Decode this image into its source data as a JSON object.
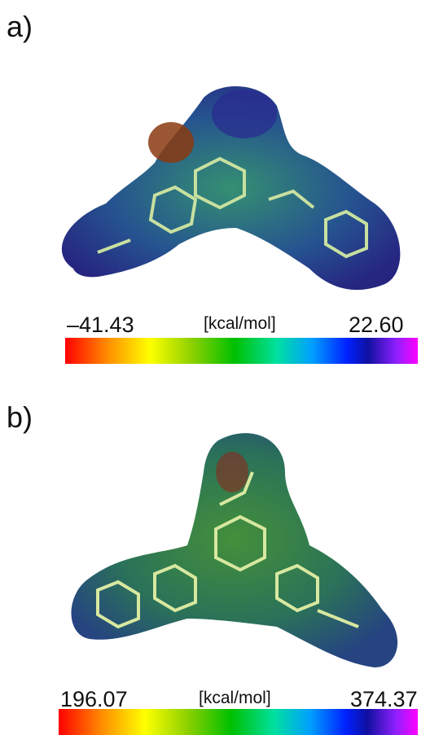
{
  "panels": [
    {
      "label": "a)",
      "min_label": "–41.43",
      "unit": "[kcal/mol]",
      "max_label": "22.60"
    },
    {
      "label": "b)",
      "min_label": "196.07",
      "unit": "[kcal/mol]",
      "max_label": "374.37"
    }
  ]
}
